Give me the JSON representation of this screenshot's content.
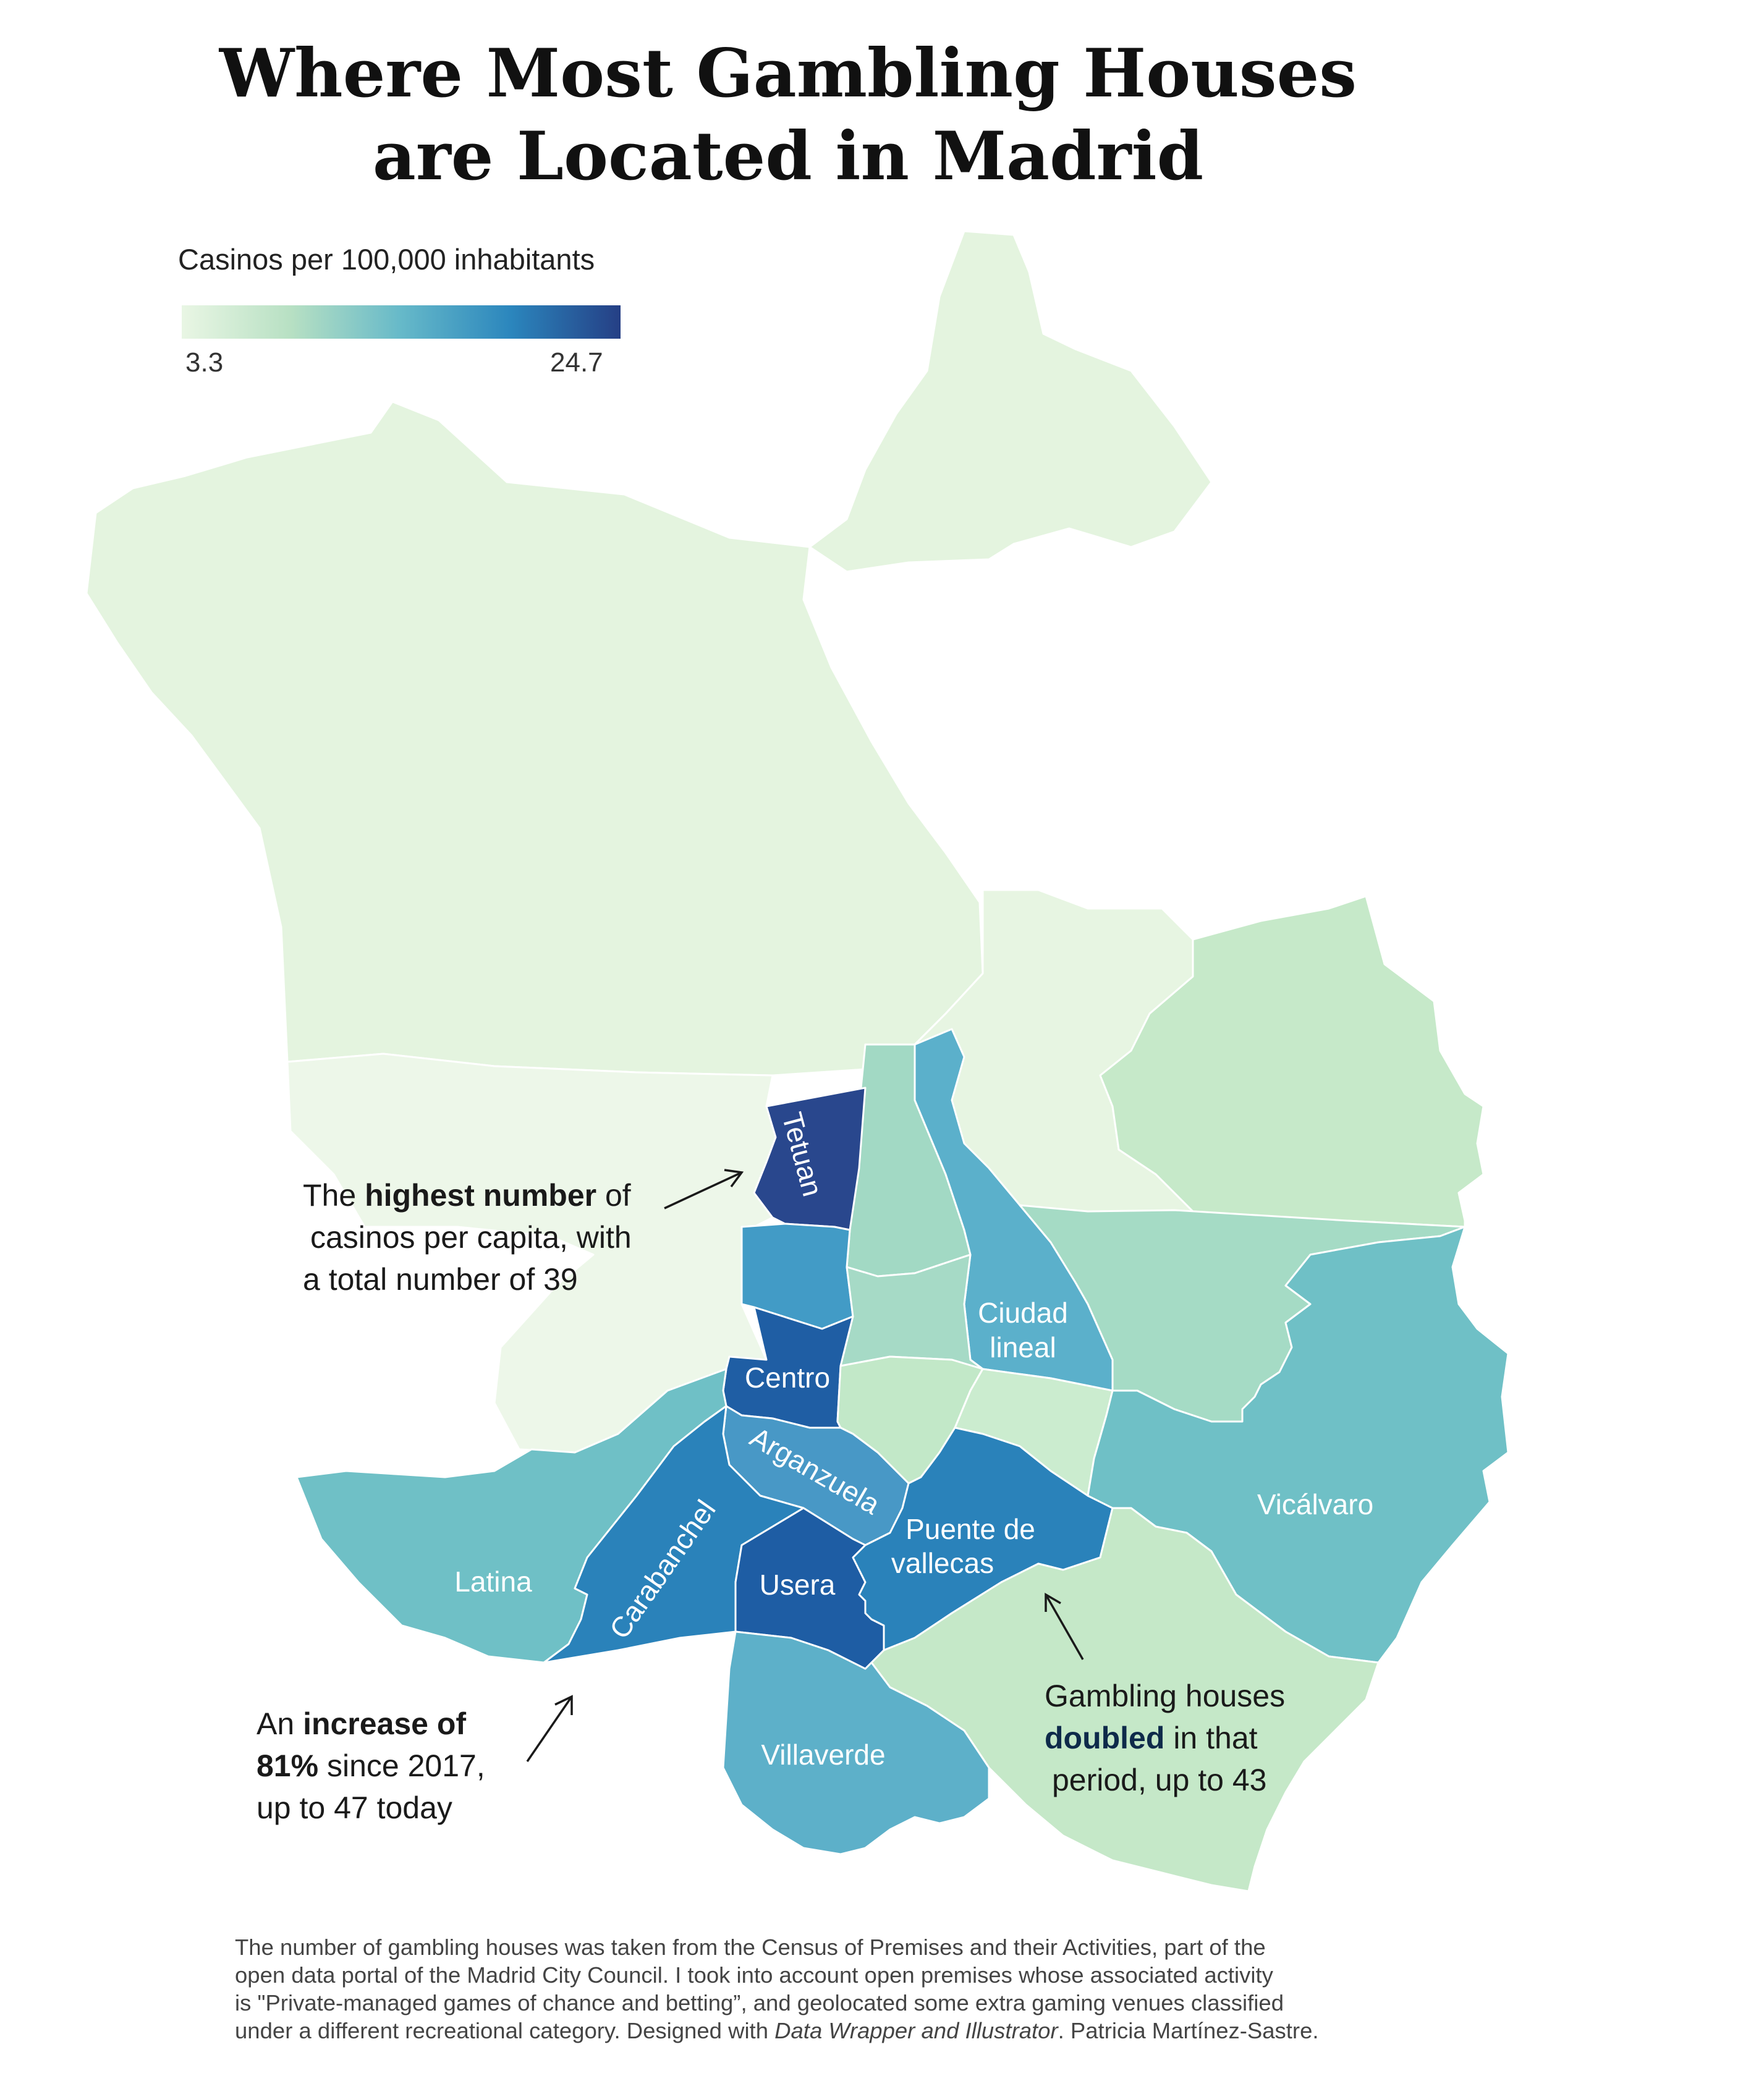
{
  "title_line1": "Where Most Gambling Houses",
  "title_line2": "are Located in Madrid",
  "legend": {
    "title": "Casinos per 100,000 inhabitants",
    "min_label": "3.3",
    "max_label": "24.7",
    "min_value": 3.3,
    "max_value": 24.7,
    "colors": [
      "#e9f6e4",
      "#b7e0c3",
      "#66b9c9",
      "#2b86bd",
      "#253f85"
    ]
  },
  "districts": {
    "tetuan": {
      "label": "Tetuan",
      "color": "#29478d"
    },
    "centro": {
      "label": "Centro",
      "color": "#1f5ea4"
    },
    "usera": {
      "label": "Usera",
      "color": "#1e5da4"
    },
    "carabanchel": {
      "label": "Carabanchel",
      "color": "#2a82ba"
    },
    "puente_de_vallecas": {
      "label_line1": "Puente de",
      "label_line2": "vallecas",
      "color": "#2a82ba"
    },
    "arganzuela": {
      "label": "Arganzuela",
      "color": "#4898c6"
    },
    "chamberi": {
      "color": "#429bc6"
    },
    "ciudad_lineal": {
      "label_line1": "Ciudad",
      "label_line2": "lineal",
      "color": "#5bb0cb"
    },
    "chamartin": {
      "color": "#a2d9c4"
    },
    "latina": {
      "label": "Latina",
      "color": "#6fc0c6"
    },
    "vicalvaro": {
      "label": "Vicálvaro",
      "color": "#6fc0c6"
    },
    "villaverde": {
      "label": "Villaverde",
      "color": "#5db0c9"
    },
    "salamanca": {
      "color": "#a6dac6"
    },
    "san_blas": {
      "color": "#a5dbc5"
    },
    "retiro": {
      "color": "#c2e8c8"
    },
    "moratalaz": {
      "color": "#cbeccf"
    },
    "villa_de_vallecas": {
      "color": "#c5e8c8"
    },
    "barajas": {
      "color": "#c6e9c9"
    },
    "hortaleza": {
      "color": "#e7f5e2"
    },
    "fuencarral_el_pardo": {
      "color": "#e4f4df"
    },
    "moncloa_aravaca": {
      "color": "#edf7e9"
    }
  },
  "annotations": {
    "a1": {
      "pre": "The ",
      "bold": "highest number",
      "post": " of",
      "line2": "casinos per capita, with",
      "line3": "a total number of 39"
    },
    "a2": {
      "pre": "An ",
      "bold1": "increase of",
      "bold2": "81%",
      "post2": " since 2017,",
      "line3": "up to 47 today"
    },
    "a3": {
      "line1": "Gambling houses",
      "bold": "doubled",
      "post": " in that",
      "line3": "period, up to 43"
    }
  },
  "footer": {
    "line1": "The number of gambling houses was taken from the Census of Premises and their Activities, part of the",
    "line2": "open data portal of the Madrid City Council. I took into account open premises whose associated activity",
    "line3": "is \"Private-managed games of chance and betting”, and geolocated some extra gaming venues classified",
    "line4_pre": "under a different recreational category. Designed with ",
    "line4_italic": "Data Wrapper and Illustrator",
    "line4_post": ". Patricia Martínez-Sastre."
  }
}
